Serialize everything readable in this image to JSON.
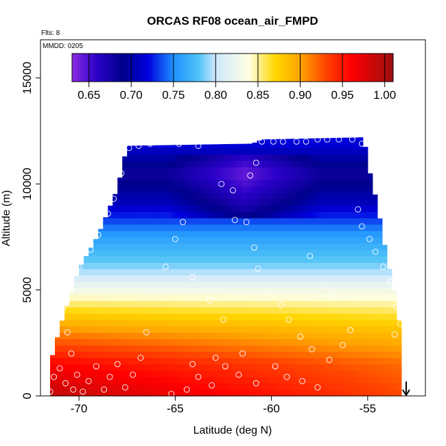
{
  "chart_data": {
    "type": "heatmap",
    "title": "ORCAS RF08 ocean_air_FMPD",
    "note_flights": "Flts: 8",
    "note_date": "MMDD: 0205",
    "xlabel": "Latitude (deg N)",
    "ylabel": "Altitude (m)",
    "xlim": [
      -72,
      -52
    ],
    "ylim": [
      0,
      16800
    ],
    "xticks": [
      -70,
      -65,
      -60,
      -55
    ],
    "xtick_labels": [
      "-70",
      "-65",
      "-60",
      "-55"
    ],
    "yticks": [
      0,
      5000,
      10000,
      15000
    ],
    "ytick_labels": [
      "0",
      "5000",
      "10000",
      "15000"
    ],
    "colorbar": {
      "min": 0.63,
      "max": 1.01,
      "ticks": [
        0.65,
        0.7,
        0.75,
        0.8,
        0.85,
        0.9,
        0.95,
        1.0
      ],
      "tick_labels": [
        "0.65",
        "0.70",
        "0.75",
        "0.80",
        "0.85",
        "0.90",
        "0.95",
        "1.00"
      ],
      "stops": [
        {
          "v": 0.63,
          "c": "#8a2be2"
        },
        {
          "v": 0.66,
          "c": "#2a00c8"
        },
        {
          "v": 0.69,
          "c": "#00008b"
        },
        {
          "v": 0.72,
          "c": "#0000e0"
        },
        {
          "v": 0.75,
          "c": "#1e90ff"
        },
        {
          "v": 0.78,
          "c": "#4fc3f7"
        },
        {
          "v": 0.8,
          "c": "#cfe8ff"
        },
        {
          "v": 0.84,
          "c": "#ffffe0"
        },
        {
          "v": 0.87,
          "c": "#ffd700"
        },
        {
          "v": 0.9,
          "c": "#ffa500"
        },
        {
          "v": 0.93,
          "c": "#ff4500"
        },
        {
          "v": 0.96,
          "c": "#ff0000"
        },
        {
          "v": 1.01,
          "c": "#9b1010"
        }
      ]
    },
    "field_profile": [
      {
        "alt": 0,
        "v": 0.99
      },
      {
        "alt": 1500,
        "v": 0.96
      },
      {
        "alt": 3000,
        "v": 0.91
      },
      {
        "alt": 4500,
        "v": 0.85
      },
      {
        "alt": 6000,
        "v": 0.79
      },
      {
        "alt": 7500,
        "v": 0.76
      },
      {
        "alt": 9000,
        "v": 0.71
      },
      {
        "alt": 10500,
        "v": 0.68
      },
      {
        "alt": 12000,
        "v": 0.72
      }
    ],
    "coverage_envelope": [
      {
        "lat": -71.5,
        "top": 1500
      },
      {
        "lat": -71.0,
        "top": 3200
      },
      {
        "lat": -70.0,
        "top": 6000
      },
      {
        "lat": -69.0,
        "top": 7600
      },
      {
        "lat": -68.0,
        "top": 9800
      },
      {
        "lat": -67.5,
        "top": 11800
      },
      {
        "lat": -61.0,
        "top": 11900
      },
      {
        "lat": -60.5,
        "top": 12100
      },
      {
        "lat": -55.2,
        "top": 12200
      },
      {
        "lat": -55.0,
        "top": 11000
      },
      {
        "lat": -54.5,
        "top": 9000
      },
      {
        "lat": -54.0,
        "top": 6500
      },
      {
        "lat": -53.5,
        "top": 4500
      },
      {
        "lat": -53.3,
        "top": 3000
      }
    ],
    "observations": [
      [
        -71.5,
        200
      ],
      [
        -71.3,
        900
      ],
      [
        -71.0,
        1300
      ],
      [
        -70.7,
        600
      ],
      [
        -70.3,
        300
      ],
      [
        -70.1,
        1000
      ],
      [
        -69.8,
        200
      ],
      [
        -69.5,
        700
      ],
      [
        -69.1,
        1400
      ],
      [
        -68.7,
        300
      ],
      [
        -68.4,
        900
      ],
      [
        -68.0,
        1500
      ],
      [
        -67.6,
        400
      ],
      [
        -67.2,
        1000
      ],
      [
        -66.8,
        1800
      ],
      [
        -66.5,
        3000
      ],
      [
        -70.4,
        2000
      ],
      [
        -70.6,
        3000
      ],
      [
        -70.8,
        4200
      ],
      [
        -70.5,
        5200
      ],
      [
        -70.0,
        6100
      ],
      [
        -69.4,
        6900
      ],
      [
        -69.0,
        7600
      ],
      [
        -68.5,
        8600
      ],
      [
        -68.2,
        9300
      ],
      [
        -67.8,
        10500
      ],
      [
        -67.4,
        11700
      ],
      [
        -66.9,
        11800
      ],
      [
        -66.3,
        11900
      ],
      [
        -65.8,
        12000
      ],
      [
        -65.3,
        12000
      ],
      [
        -64.8,
        11900
      ],
      [
        -63.8,
        11800
      ],
      [
        -62.6,
        10000
      ],
      [
        -62.0,
        9700
      ],
      [
        -61.1,
        10400
      ],
      [
        -60.8,
        11000
      ],
      [
        -60.5,
        12000
      ],
      [
        -59.9,
        12000
      ],
      [
        -59.4,
        12000
      ],
      [
        -58.7,
        12000
      ],
      [
        -58.2,
        12000
      ],
      [
        -57.6,
        12100
      ],
      [
        -57.1,
        12100
      ],
      [
        -56.5,
        12100
      ],
      [
        -55.8,
        12100
      ],
      [
        -55.3,
        11900
      ],
      [
        -55.5,
        8800
      ],
      [
        -55.3,
        8000
      ],
      [
        -54.9,
        7400
      ],
      [
        -54.6,
        6800
      ],
      [
        -54.2,
        6100
      ],
      [
        -53.8,
        5400
      ],
      [
        -53.5,
        4200
      ],
      [
        -53.3,
        3400
      ],
      [
        -53.6,
        2900
      ],
      [
        -64.6,
        8200
      ],
      [
        -65.0,
        7400
      ],
      [
        -65.5,
        6100
      ],
      [
        -64.1,
        5600
      ],
      [
        -63.2,
        4500
      ],
      [
        -62.5,
        3600
      ],
      [
        -61.9,
        8300
      ],
      [
        -61.3,
        8200
      ],
      [
        -60.9,
        7000
      ],
      [
        -60.7,
        6000
      ],
      [
        -60.3,
        4900
      ],
      [
        -59.5,
        4300
      ],
      [
        -59.1,
        3600
      ],
      [
        -58.5,
        2800
      ],
      [
        -57.9,
        2200
      ],
      [
        -57.0,
        1700
      ],
      [
        -56.3,
        2400
      ],
      [
        -55.9,
        3100
      ],
      [
        -56.8,
        4700
      ],
      [
        -57.3,
        5200
      ],
      [
        -58.0,
        6600
      ],
      [
        -59.8,
        1400
      ],
      [
        -60.8,
        600
      ],
      [
        -61.7,
        1000
      ],
      [
        -62.4,
        1400
      ],
      [
        -63.1,
        500
      ],
      [
        -63.8,
        900
      ],
      [
        -64.4,
        300
      ],
      [
        -65.2,
        100
      ],
      [
        -64.1,
        1500
      ],
      [
        -62.9,
        1800
      ],
      [
        -61.5,
        2000
      ],
      [
        -59.2,
        900
      ],
      [
        -58.4,
        700
      ],
      [
        -57.6,
        400
      ]
    ],
    "wind_arrow_lat": -53.0
  }
}
